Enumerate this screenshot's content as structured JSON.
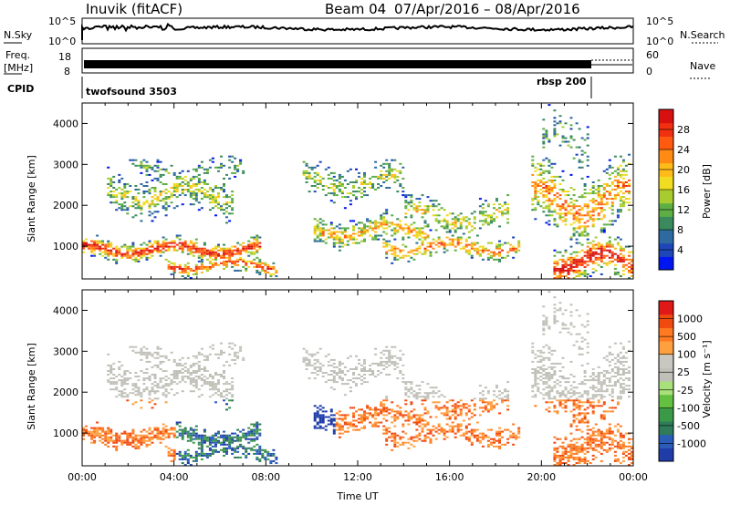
{
  "header": {
    "station": "Inuvik (fitACF)",
    "beam": "Beam 04",
    "dates": "07/Apr/2016 – 08/Apr/2016"
  },
  "summary_panel": {
    "nsky_label": "N.Sky",
    "nsky_ticks": [
      "10^5",
      "10^0"
    ],
    "nsearch_label": "N.Search",
    "nsearch_ticks": [
      "10^5",
      "10^0"
    ],
    "freq_label_1": "Freq.",
    "freq_label_2": "[MHz]",
    "freq_ticks": [
      "18",
      "8"
    ],
    "nave_label": "Nave",
    "nave_ticks": [
      "60",
      "0"
    ],
    "cpid_label": "CPID",
    "cpid_segments": [
      {
        "name": "twofsound 3503",
        "start": 0,
        "end": 21.9
      },
      {
        "name": "rbsp 200",
        "start": 21.9,
        "end": 24
      }
    ]
  },
  "chart_data": [
    {
      "type": "heatmap",
      "title": "Power",
      "xlabel": "",
      "ylabel": "Slant Range [km]",
      "xlim": [
        0,
        24
      ],
      "ylim": [
        200,
        4500
      ],
      "y_ticks": [
        "1000",
        "2000",
        "3000",
        "4000"
      ],
      "colorbar": {
        "label": "Power [dB]",
        "ticks": [
          "4",
          "8",
          "12",
          "16",
          "20",
          "24",
          "28"
        ],
        "colors": [
          "#0016f0",
          "#1d47b8",
          "#2d6aa0",
          "#3a8a5e",
          "#5cae45",
          "#a8cc30",
          "#f0dc20",
          "#ffbb1a",
          "#ff8a14",
          "#ff5a10",
          "#f03010",
          "#d81010"
        ]
      }
    },
    {
      "type": "heatmap",
      "title": "Velocity",
      "xlabel": "Time UT",
      "ylabel": "Slant Range [km]",
      "xlim": [
        0,
        24
      ],
      "ylim": [
        200,
        4500
      ],
      "x_ticks": [
        "00:00",
        "04:00",
        "08:00",
        "12:00",
        "16:00",
        "20:00",
        "00:00"
      ],
      "y_ticks": [
        "1000",
        "2000",
        "3000",
        "4000"
      ],
      "colorbar": {
        "label": "Velocity [m s⁻¹]",
        "ticks": [
          "1000",
          "500",
          "100",
          "25",
          "-25",
          "-100",
          "-500",
          "-1000"
        ],
        "colors": [
          "#1f3ca8",
          "#2b5cb8",
          "#2f7b5a",
          "#3a9a48",
          "#64c040",
          "#a8e07a",
          "#c0c0b8",
          "#c8c8c0",
          "#ffa040",
          "#ff7a20",
          "#f04a10",
          "#e01818"
        ]
      }
    }
  ]
}
